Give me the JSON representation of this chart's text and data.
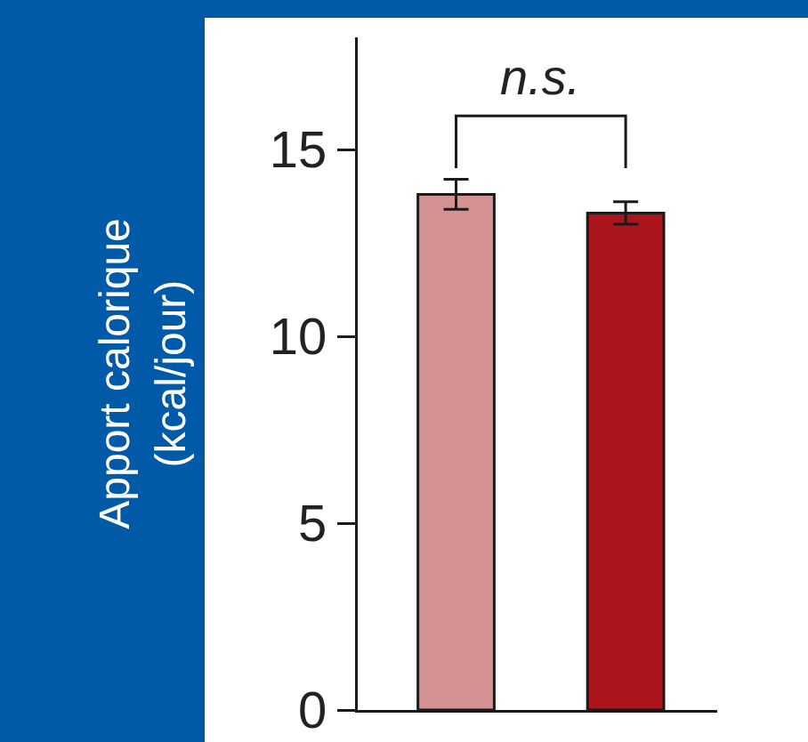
{
  "chart_data": {
    "type": "bar",
    "ylabel": "Apport calorique\n(kcal/jour)",
    "categories": [
      null,
      null
    ],
    "values": [
      13.8,
      13.3
    ],
    "colors": [
      "#d49392",
      "#ab141b"
    ],
    "errors": [
      0.4,
      0.3
    ],
    "ylim": [
      0,
      18
    ],
    "yticks": [
      0,
      5,
      10,
      15
    ],
    "annotations": [
      "n.s."
    ]
  }
}
